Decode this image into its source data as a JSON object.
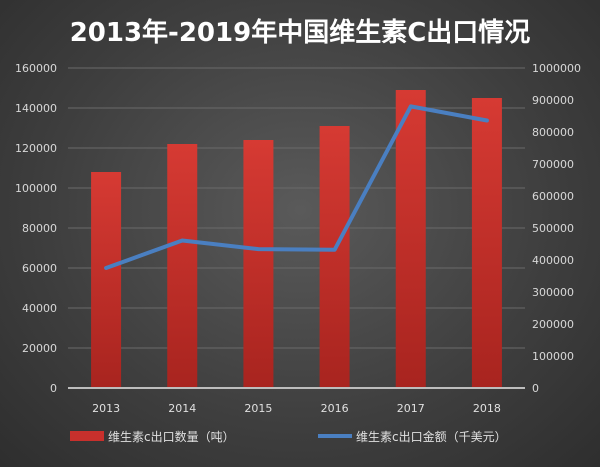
{
  "chart_data": {
    "type": "bar+line",
    "title": "2013年-2019年中国维生素C出口情况",
    "categories": [
      "2013",
      "2014",
      "2015",
      "2016",
      "2017",
      "2018"
    ],
    "series": [
      {
        "name": "维生素c出口数量（吨）",
        "type": "bar",
        "axis": "left",
        "color": "#c8302c",
        "values": [
          108000,
          122000,
          124000,
          131000,
          149000,
          145000
        ]
      },
      {
        "name": "维生素c出口金额（千美元）",
        "type": "line",
        "axis": "right",
        "color": "#4a7fc1",
        "values": [
          375000,
          461000,
          434000,
          432000,
          880000,
          836000
        ]
      }
    ],
    "y_left": {
      "range": [
        0,
        160000
      ],
      "ticks": [
        "0",
        "20000",
        "40000",
        "60000",
        "80000",
        "100000",
        "120000",
        "140000",
        "160000"
      ]
    },
    "y_right": {
      "range": [
        0,
        1000000
      ],
      "ticks": [
        "0",
        "100000",
        "200000",
        "300000",
        "400000",
        "500000",
        "600000",
        "700000",
        "800000",
        "900000",
        "1000000"
      ]
    },
    "grid": true,
    "legend": "bottom"
  }
}
